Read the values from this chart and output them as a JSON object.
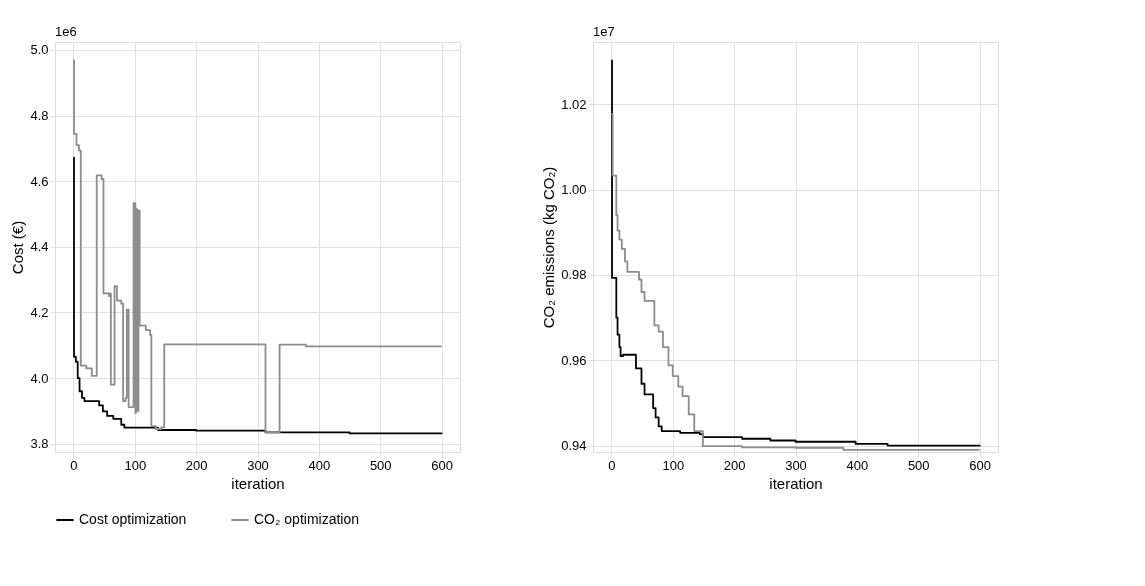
{
  "chart_data": [
    {
      "type": "step",
      "xlabel": "iteration",
      "ylabel": "Cost (€)",
      "annotations": [
        "1e6"
      ],
      "xlim": [
        -30,
        630
      ],
      "xticks": [
        0,
        100,
        200,
        300,
        400,
        500,
        600
      ],
      "ylim": [
        3.775,
        5.024
      ],
      "yticks": [
        3.8,
        {
          "value": 4.0,
          "label": "4.0"
        },
        4.2,
        4.4,
        4.6,
        4.8,
        {
          "value": 5.0,
          "label": "5.0"
        }
      ],
      "grid": true,
      "legend": "bottom",
      "series": [
        {
          "name": "Cost optimization",
          "color": "#000000",
          "x": [
            0,
            1,
            4,
            7,
            10,
            14,
            18,
            42,
            48,
            55,
            65,
            78,
            83,
            138,
            200,
            313,
            450,
            600
          ],
          "values": [
            4.672,
            4.065,
            4.05,
            4.0,
            3.96,
            3.94,
            3.93,
            3.917,
            3.899,
            3.885,
            3.876,
            3.858,
            3.849,
            3.842,
            3.84,
            3.835,
            3.832,
            3.83
          ]
        },
        {
          "name": "CO₂ optimization",
          "color": "#8c8c8c",
          "x": [
            0,
            1,
            5,
            9,
            12,
            21,
            30,
            38,
            46,
            49,
            58,
            60,
            61,
            67,
            71,
            78,
            81,
            85,
            87,
            90,
            98,
            101,
            102,
            104,
            106,
            108,
            118,
            125,
            127,
            134,
            143,
            148,
            313,
            336,
            379,
            600
          ],
          "values": [
            4.969,
            4.744,
            4.71,
            4.694,
            4.038,
            4.03,
            4.007,
            4.618,
            4.606,
            4.258,
            4.25,
            4.258,
            3.98,
            4.28,
            4.236,
            4.227,
            3.93,
            3.94,
            4.209,
            3.912,
            4.533,
            3.894,
            4.515,
            3.9,
            4.51,
            4.16,
            4.146,
            4.132,
            3.854,
            3.845,
            3.85,
            4.103,
            3.835,
            4.102,
            4.097,
            4.097
          ]
        }
      ]
    },
    {
      "type": "step",
      "xlabel": "iteration",
      "ylabel": "CO₂ emissions (kg CO₂)",
      "annotations": [
        "1e7"
      ],
      "xlim": [
        -30,
        630
      ],
      "xticks": [
        0,
        100,
        200,
        300,
        400,
        500,
        600
      ],
      "ylim": [
        0.9385,
        1.0346
      ],
      "yticks": [
        0.94,
        0.96,
        0.98,
        {
          "value": 1.0,
          "label": "1.00"
        },
        1.02
      ],
      "grid": true,
      "legend": "bottom",
      "series": [
        {
          "name": "Cost optimization",
          "color": "#000000",
          "x": [
            0,
            1,
            8,
            10,
            13,
            15,
            19,
            40,
            49,
            54,
            68,
            72,
            77,
            82,
            112,
            144,
            149,
            213,
            259,
            300,
            398,
            450,
            600
          ],
          "values": [
            1.0303,
            0.9793,
            0.97,
            0.966,
            0.9631,
            0.961,
            0.9613,
            0.9581,
            0.9545,
            0.952,
            0.9488,
            0.9466,
            0.9445,
            0.9434,
            0.943,
            0.9427,
            0.942,
            0.9416,
            0.9412,
            0.9409,
            0.9404,
            0.94,
            0.9398
          ]
        },
        {
          "name": "CO₂ optimization",
          "color": "#8c8c8c",
          "x": [
            0,
            2,
            8,
            10,
            13,
            17,
            22,
            26,
            45,
            49,
            54,
            70,
            77,
            84,
            93,
            100,
            109,
            116,
            126,
            135,
            149,
            213,
            300,
            378,
            600
          ],
          "values": [
            1.0177,
            1.0033,
            0.994,
            0.9904,
            0.9883,
            0.9861,
            0.9832,
            0.9807,
            0.9789,
            0.976,
            0.9739,
            0.9682,
            0.9667,
            0.9631,
            0.9588,
            0.9563,
            0.9538,
            0.9516,
            0.9473,
            0.9434,
            0.9399,
            0.9396,
            0.9395,
            0.939,
            0.939
          ]
        }
      ]
    }
  ]
}
